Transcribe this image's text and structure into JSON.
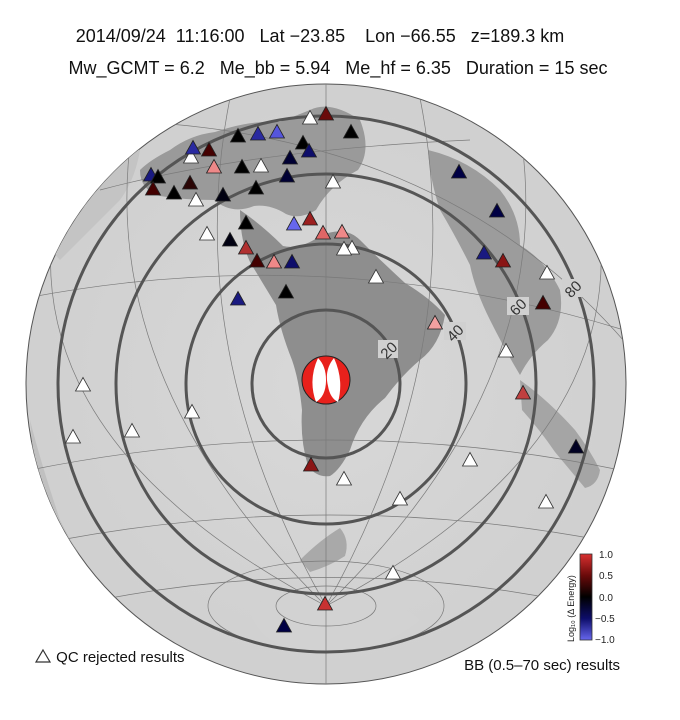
{
  "header": {
    "line1": "2014/09/24  11:16:00   Lat −23.85    Lon −66.55   z=189.3 km",
    "line2": "Mw_GCMT = 6.2   Me_bb = 5.94   Me_hf = 6.35   Duration = 15 sec"
  },
  "distance_labels": [
    "20",
    "40",
    "60",
    "80"
  ],
  "legend": {
    "qc_label": "QC rejected results",
    "bb_label": "BB (0.5–70 sec) results"
  },
  "colorbar": {
    "title": "Log₁₀ (Δ Energy)",
    "ticks": [
      "1.0",
      "0.5",
      "0.0",
      "−0.5",
      "−1.0"
    ],
    "colors": [
      "#d93030",
      "#6a0a0a",
      "#000000",
      "#0d0d6a",
      "#6666ee"
    ]
  },
  "beachball": {
    "colors": [
      "#e8211c",
      "#ffffff"
    ]
  },
  "stations": {
    "qc_rejected": [
      [
        310,
        118
      ],
      [
        261,
        166
      ],
      [
        191,
        157
      ],
      [
        196,
        200
      ],
      [
        207,
        234
      ],
      [
        333,
        182
      ],
      [
        376,
        277
      ],
      [
        352,
        248
      ],
      [
        344,
        249
      ],
      [
        547,
        273
      ],
      [
        506,
        351
      ],
      [
        192,
        412
      ],
      [
        132,
        431
      ],
      [
        83,
        385
      ],
      [
        73,
        437
      ],
      [
        470,
        460
      ],
      [
        344,
        479
      ],
      [
        400,
        499
      ],
      [
        546,
        502
      ],
      [
        393,
        573
      ]
    ],
    "colored": [
      [
        326,
        114,
        "#6a0a0a"
      ],
      [
        351,
        132,
        "#000000"
      ],
      [
        238,
        136,
        "#000000"
      ],
      [
        258,
        134,
        "#2a2aa0"
      ],
      [
        277,
        132,
        "#5555dd"
      ],
      [
        303,
        143,
        "#000000"
      ],
      [
        290,
        158,
        "#000033"
      ],
      [
        309,
        151,
        "#0d0d6a"
      ],
      [
        193,
        148,
        "#2a2aa0"
      ],
      [
        209,
        150,
        "#440000"
      ],
      [
        214,
        167,
        "#ee8888"
      ],
      [
        242,
        167,
        "#000000"
      ],
      [
        151,
        175,
        "#1a1a80"
      ],
      [
        158,
        177,
        "#000000"
      ],
      [
        153,
        189,
        "#440000"
      ],
      [
        174,
        193,
        "#000000"
      ],
      [
        190,
        183,
        "#2a0505"
      ],
      [
        223,
        195,
        "#000011"
      ],
      [
        256,
        188,
        "#000000"
      ],
      [
        287,
        176,
        "#000033"
      ],
      [
        459,
        172,
        "#000044"
      ],
      [
        497,
        211,
        "#000044"
      ],
      [
        246,
        223,
        "#000000"
      ],
      [
        230,
        240,
        "#000011"
      ],
      [
        294,
        224,
        "#6666ee"
      ],
      [
        310,
        219,
        "#9c2020"
      ],
      [
        323,
        233,
        "#e06666"
      ],
      [
        342,
        232,
        "#ee8888"
      ],
      [
        246,
        248,
        "#b03030"
      ],
      [
        257,
        261,
        "#440000"
      ],
      [
        274,
        262,
        "#ee8888"
      ],
      [
        292,
        262,
        "#0d0d6a"
      ],
      [
        484,
        253,
        "#1a1a80"
      ],
      [
        503,
        261,
        "#8a1515"
      ],
      [
        238,
        299,
        "#1a1a80"
      ],
      [
        286,
        292,
        "#000000"
      ],
      [
        543,
        303,
        "#440000"
      ],
      [
        435,
        323,
        "#f2a0a0"
      ],
      [
        523,
        393,
        "#c04040"
      ],
      [
        576,
        447,
        "#000022"
      ],
      [
        311,
        465,
        "#8a1515"
      ],
      [
        325,
        604,
        "#c83232"
      ],
      [
        284,
        626,
        "#000044"
      ]
    ]
  }
}
